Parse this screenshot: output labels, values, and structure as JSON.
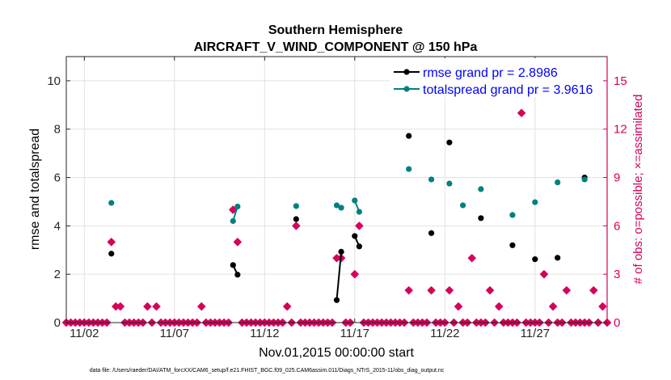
{
  "chart_data": {
    "type": "line",
    "title": "Southern Hemisphere",
    "subtitle": "AIRCRAFT_V_WIND_COMPONENT @ 150 hPa",
    "xlabel": "Nov.01,2015 00:00:00 start",
    "ylabel": "rmse and totalspread",
    "y2label": "# of obs: o=possible; ×=assimilated",
    "footnote": "data file: /Users/raeder/DAI/ATM_forcXX/CAM6_setup/f.e21.FHIST_BGC.f09_025.CAM6assim.011/Diags_NTrS_2015-11/obs_diag_output.nc",
    "xlim": [
      1.0,
      31.0
    ],
    "ylim": [
      0,
      11
    ],
    "y2lim": [
      0,
      16.5
    ],
    "x_ticks": [
      2,
      7,
      12,
      17,
      22,
      27
    ],
    "x_ticklabels": [
      "11/02",
      "11/07",
      "11/12",
      "11/17",
      "11/22",
      "11/27"
    ],
    "y_ticks": [
      0,
      2,
      4,
      6,
      8,
      10
    ],
    "y_ticklabels": [
      "0",
      "2",
      "4",
      "6",
      "8",
      "10"
    ],
    "y2_ticks": [
      0,
      3,
      6,
      9,
      12,
      15
    ],
    "y2_ticklabels": [
      "0",
      "3",
      "6",
      "9",
      "12",
      "15"
    ],
    "grid": true,
    "colors": {
      "rmse": "#000000",
      "spread": "#008080",
      "obs": "#d6005a",
      "legend_text": "#0000ff"
    },
    "series": [
      {
        "name": "rmse grand pr = 2.8986",
        "color": "#000000",
        "segments": [
          [
            [
              3.5,
              2.85
            ]
          ],
          [
            [
              10.25,
              2.38
            ],
            [
              10.5,
              1.98
            ]
          ],
          [
            [
              13.75,
              4.28
            ]
          ],
          [
            [
              16.0,
              0.93
            ],
            [
              16.25,
              2.93
            ]
          ],
          [
            [
              17.0,
              3.58
            ],
            [
              17.25,
              3.15
            ]
          ],
          [
            [
              20.0,
              7.72
            ]
          ],
          [
            [
              21.25,
              3.7
            ]
          ],
          [
            [
              22.25,
              7.45
            ]
          ],
          [
            [
              24.0,
              4.32
            ]
          ],
          [
            [
              25.75,
              3.2
            ]
          ],
          [
            [
              27.0,
              2.62
            ]
          ],
          [
            [
              28.25,
              2.68
            ]
          ],
          [
            [
              29.75,
              6.0
            ]
          ]
        ]
      },
      {
        "name": "totalspread grand pr = 3.9616",
        "color": "#008080",
        "segments": [
          [
            [
              3.5,
              4.95
            ]
          ],
          [
            [
              10.25,
              4.2
            ],
            [
              10.5,
              4.8
            ]
          ],
          [
            [
              13.75,
              4.82
            ]
          ],
          [
            [
              16.0,
              4.85
            ],
            [
              16.25,
              4.75
            ]
          ],
          [
            [
              17.0,
              5.05
            ],
            [
              17.25,
              4.58
            ]
          ],
          [
            [
              20.0,
              6.35
            ]
          ],
          [
            [
              21.25,
              5.92
            ]
          ],
          [
            [
              22.25,
              5.75
            ]
          ],
          [
            [
              23.0,
              4.85
            ]
          ],
          [
            [
              24.0,
              5.52
            ]
          ],
          [
            [
              25.75,
              4.45
            ]
          ],
          [
            [
              27.0,
              4.98
            ]
          ],
          [
            [
              28.25,
              5.8
            ]
          ],
          [
            [
              29.75,
              5.92
            ]
          ]
        ]
      }
    ],
    "obs_count": {
      "name": "# of obs assimilated",
      "x": [
        1.0,
        1.25,
        1.5,
        1.75,
        2.0,
        2.25,
        2.5,
        2.75,
        3.0,
        3.25,
        3.5,
        3.75,
        4.0,
        4.25,
        4.5,
        4.75,
        5.0,
        5.25,
        5.5,
        5.75,
        6.0,
        6.25,
        6.5,
        6.75,
        7.0,
        7.25,
        7.5,
        7.75,
        8.0,
        8.25,
        8.5,
        8.75,
        9.0,
        9.25,
        9.5,
        9.75,
        10.0,
        10.25,
        10.5,
        10.75,
        11.0,
        11.25,
        11.5,
        11.75,
        12.0,
        12.25,
        12.5,
        12.75,
        13.0,
        13.25,
        13.5,
        13.75,
        14.0,
        14.25,
        14.5,
        14.75,
        15.0,
        15.25,
        15.5,
        15.75,
        16.0,
        16.25,
        16.5,
        16.75,
        17.0,
        17.25,
        17.5,
        17.75,
        18.0,
        18.25,
        18.5,
        18.75,
        19.0,
        19.25,
        19.5,
        19.75,
        20.0,
        20.25,
        20.5,
        20.75,
        21.0,
        21.25,
        21.5,
        21.75,
        22.0,
        22.25,
        22.5,
        22.75,
        23.0,
        23.25,
        23.5,
        23.75,
        24.0,
        24.25,
        24.5,
        24.75,
        25.0,
        25.25,
        25.5,
        25.75,
        26.0,
        26.25,
        26.5,
        26.75,
        27.0,
        27.25,
        27.5,
        27.75,
        28.0,
        28.25,
        28.5,
        28.75,
        29.0,
        29.25,
        29.5,
        29.75,
        30.0,
        30.25,
        30.5,
        30.75,
        31.0
      ],
      "values": [
        0,
        0,
        0,
        0,
        0,
        0,
        0,
        0,
        0,
        0,
        5,
        1,
        1,
        0,
        0,
        0,
        0,
        0,
        1,
        0,
        1,
        0,
        0,
        0,
        0,
        0,
        0,
        0,
        0,
        0,
        1,
        0,
        0,
        0,
        0,
        0,
        0,
        7,
        5,
        0,
        0,
        0,
        0,
        0,
        0,
        0,
        0,
        0,
        0,
        1,
        0,
        6,
        0,
        0,
        0,
        0,
        0,
        0,
        0,
        0,
        4,
        4,
        0,
        0,
        3,
        6,
        0,
        0,
        0,
        0,
        0,
        0,
        0,
        0,
        0,
        0,
        2,
        0,
        0,
        0,
        0,
        2,
        0,
        0,
        0,
        2,
        0,
        1,
        0,
        0,
        4,
        0,
        0,
        0,
        2,
        0,
        1,
        0,
        0,
        0,
        0,
        13,
        0,
        0,
        0,
        0,
        3,
        0,
        1,
        0,
        0,
        2,
        0,
        0,
        0,
        0,
        0,
        2,
        0,
        1,
        0
      ]
    }
  }
}
